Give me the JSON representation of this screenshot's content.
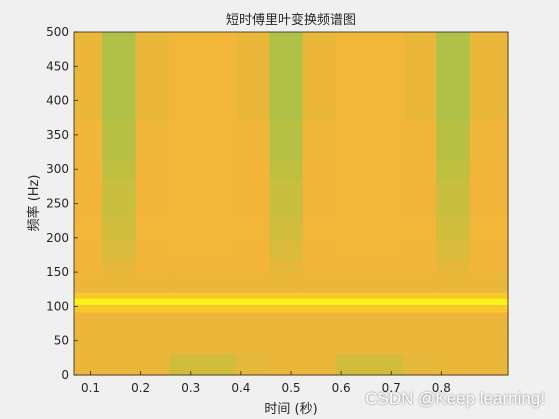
{
  "chart_data": {
    "type": "heatmap",
    "title": "短时傅里叶变换频谱图",
    "xlabel": "时间 (秒)",
    "ylabel": "频率 (Hz)",
    "xlim": [
      0.067,
      0.933
    ],
    "ylim": [
      0,
      500
    ],
    "xticks": [
      0.1,
      0.2,
      0.3,
      0.4,
      0.5,
      0.6,
      0.7,
      0.8
    ],
    "xtick_labels": [
      "0.1",
      "0.2",
      "0.3",
      "0.4",
      "0.5",
      "0.6",
      "0.7",
      "0.8"
    ],
    "yticks": [
      0,
      50,
      100,
      150,
      200,
      250,
      300,
      350,
      400,
      450,
      500
    ],
    "ytick_labels": [
      "0",
      "50",
      "100",
      "150",
      "200",
      "250",
      "300",
      "350",
      "400",
      "450",
      "500"
    ],
    "time_bins": [
      0.067,
      0.123,
      0.19,
      0.257,
      0.39,
      0.457,
      0.523,
      0.59,
      0.723,
      0.79,
      0.857,
      0.933
    ],
    "freq_bins": [
      0,
      31,
      62,
      85,
      92,
      103,
      112,
      121,
      150,
      168,
      197,
      229,
      284,
      313,
      373,
      500
    ],
    "intensity": [
      [
        0.3,
        0.3,
        0.3,
        0.2,
        0.28,
        0.3,
        0.3,
        0.2,
        0.28,
        0.3,
        0.3
      ],
      [
        0.3,
        0.3,
        0.3,
        0.3,
        0.3,
        0.3,
        0.3,
        0.3,
        0.3,
        0.3,
        0.3
      ],
      [
        0.3,
        0.3,
        0.3,
        0.3,
        0.3,
        0.3,
        0.3,
        0.3,
        0.3,
        0.3,
        0.3
      ],
      [
        0.34,
        0.34,
        0.34,
        0.34,
        0.34,
        0.34,
        0.34,
        0.34,
        0.34,
        0.34,
        0.34
      ],
      [
        0.62,
        0.62,
        0.62,
        0.62,
        0.62,
        0.62,
        0.62,
        0.62,
        0.62,
        0.62,
        0.62
      ],
      [
        0.92,
        0.92,
        0.92,
        0.92,
        0.92,
        0.92,
        0.92,
        0.92,
        0.92,
        0.92,
        0.92
      ],
      [
        0.62,
        0.62,
        0.62,
        0.62,
        0.62,
        0.62,
        0.62,
        0.62,
        0.62,
        0.62,
        0.62
      ],
      [
        0.3,
        0.3,
        0.3,
        0.3,
        0.3,
        0.3,
        0.3,
        0.3,
        0.3,
        0.3,
        0.3
      ],
      [
        0.34,
        0.28,
        0.34,
        0.34,
        0.34,
        0.28,
        0.34,
        0.34,
        0.34,
        0.28,
        0.34
      ],
      [
        0.34,
        0.24,
        0.34,
        0.36,
        0.34,
        0.24,
        0.34,
        0.36,
        0.34,
        0.24,
        0.34
      ],
      [
        0.36,
        0.2,
        0.36,
        0.36,
        0.36,
        0.2,
        0.36,
        0.36,
        0.36,
        0.2,
        0.36
      ],
      [
        0.34,
        0.16,
        0.34,
        0.36,
        0.34,
        0.16,
        0.34,
        0.36,
        0.34,
        0.16,
        0.34
      ],
      [
        0.34,
        0.12,
        0.34,
        0.36,
        0.34,
        0.12,
        0.34,
        0.36,
        0.34,
        0.12,
        0.34
      ],
      [
        0.32,
        0.08,
        0.32,
        0.36,
        0.32,
        0.08,
        0.32,
        0.36,
        0.32,
        0.08,
        0.32
      ],
      [
        0.3,
        0.04,
        0.3,
        0.36,
        0.3,
        0.04,
        0.3,
        0.36,
        0.3,
        0.04,
        0.3
      ]
    ],
    "colormap": [
      "#a7c14a",
      "#c8bf3c",
      "#f2b53a",
      "#f5c034",
      "#fbcb28",
      "#faee1f",
      "#f8fb18"
    ],
    "grid": false,
    "legend": "none"
  },
  "axes": {
    "axis_color": "#262626"
  },
  "watermark": "CSDN @Keep learning!"
}
